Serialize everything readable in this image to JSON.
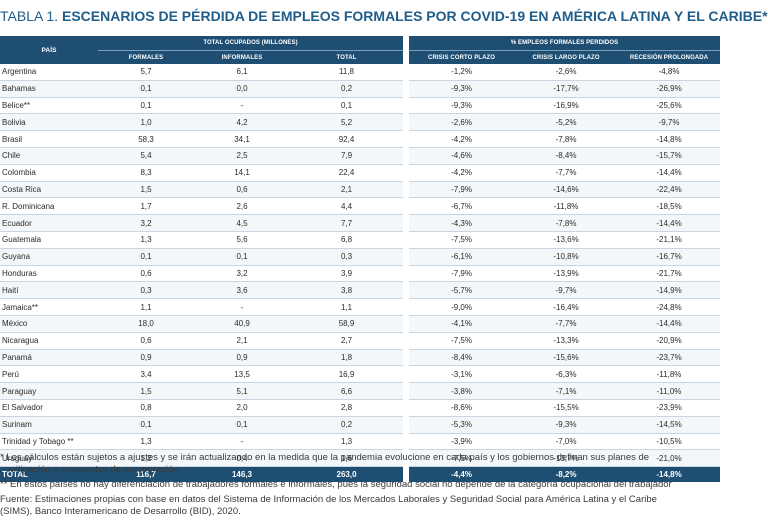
{
  "title": {
    "lead": "TABLA 1.",
    "rest": "ESCENARIOS DE PÉRDIDA DE EMPLEOS FORMALES POR COVID-19 EN AMÉRICA LATINA Y EL CARIBE*"
  },
  "table": {
    "header": {
      "pais": "PAÍS",
      "group_ocupados": "TOTAL OCUPADOS (MILLONES)",
      "group_perdidos": "% EMPLEOS FORMALES PERDIDOS",
      "formales": "FORMALES",
      "informales": "INFORMALES",
      "total": "TOTAL",
      "corto": "CRISIS CORTO PLAZO",
      "largo": "CRISIS LARGO PLAZO",
      "prolongada": "RECESIÓN PROLONGADA"
    },
    "rows": [
      {
        "pais": "Argentina",
        "formales": "5,7",
        "informales": "6,1",
        "total": "11,8",
        "corto": "-1,2%",
        "largo": "-2,6%",
        "prolongada": "-4,8%"
      },
      {
        "pais": "Bahamas",
        "formales": "0,1",
        "informales": "0,0",
        "total": "0,2",
        "corto": "-9,3%",
        "largo": "-17,7%",
        "prolongada": "-26,9%"
      },
      {
        "pais": "Belice**",
        "formales": "0,1",
        "informales": "-",
        "total": "0,1",
        "corto": "-9,3%",
        "largo": "-16,9%",
        "prolongada": "-25,6%"
      },
      {
        "pais": "Bolivia",
        "formales": "1,0",
        "informales": "4,2",
        "total": "5,2",
        "corto": "-2,6%",
        "largo": "-5,2%",
        "prolongada": "-9,7%"
      },
      {
        "pais": "Brasil",
        "formales": "58,3",
        "informales": "34,1",
        "total": "92,4",
        "corto": "-4,2%",
        "largo": "-7,8%",
        "prolongada": "-14,8%"
      },
      {
        "pais": "Chile",
        "formales": "5,4",
        "informales": "2,5",
        "total": "7,9",
        "corto": "-4,6%",
        "largo": "-8,4%",
        "prolongada": "-15,7%"
      },
      {
        "pais": "Colombia",
        "formales": "8,3",
        "informales": "14,1",
        "total": "22,4",
        "corto": "-4,2%",
        "largo": "-7,7%",
        "prolongada": "-14,4%"
      },
      {
        "pais": "Costa Rica",
        "formales": "1,5",
        "informales": "0,6",
        "total": "2,1",
        "corto": "-7,9%",
        "largo": "-14,6%",
        "prolongada": "-22,4%"
      },
      {
        "pais": "R. Dominicana",
        "formales": "1,7",
        "informales": "2,6",
        "total": "4,4",
        "corto": "-6,7%",
        "largo": "-11,8%",
        "prolongada": "-18,5%"
      },
      {
        "pais": "Ecuador",
        "formales": "3,2",
        "informales": "4,5",
        "total": "7,7",
        "corto": "-4,3%",
        "largo": "-7,8%",
        "prolongada": "-14,4%"
      },
      {
        "pais": "Guatemala",
        "formales": "1,3",
        "informales": "5,6",
        "total": "6,8",
        "corto": "-7,5%",
        "largo": "-13,6%",
        "prolongada": "-21,1%"
      },
      {
        "pais": "Guyana",
        "formales": "0,1",
        "informales": "0,1",
        "total": "0,3",
        "corto": "-6,1%",
        "largo": "-10,8%",
        "prolongada": "-16,7%"
      },
      {
        "pais": "Honduras",
        "formales": "0,6",
        "informales": "3,2",
        "total": "3,9",
        "corto": "-7,9%",
        "largo": "-13,9%",
        "prolongada": "-21,7%"
      },
      {
        "pais": "Haití",
        "formales": "0,3",
        "informales": "3,6",
        "total": "3,8",
        "corto": "-5,7%",
        "largo": "-9,7%",
        "prolongada": "-14,9%"
      },
      {
        "pais": "Jamaica**",
        "formales": "1,1",
        "informales": "-",
        "total": "1,1",
        "corto": "-9,0%",
        "largo": "-16,4%",
        "prolongada": "-24,8%"
      },
      {
        "pais": "México",
        "formales": "18,0",
        "informales": "40,9",
        "total": "58,9",
        "corto": "-4,1%",
        "largo": "-7,7%",
        "prolongada": "-14,4%"
      },
      {
        "pais": "Nicaragua",
        "formales": "0,6",
        "informales": "2,1",
        "total": "2,7",
        "corto": "-7,5%",
        "largo": "-13,3%",
        "prolongada": "-20,9%"
      },
      {
        "pais": "Panamá",
        "formales": "0,9",
        "informales": "0,9",
        "total": "1,8",
        "corto": "-8,4%",
        "largo": "-15,6%",
        "prolongada": "-23,7%"
      },
      {
        "pais": "Perú",
        "formales": "3,4",
        "informales": "13,5",
        "total": "16,9",
        "corto": "-3,1%",
        "largo": "-6,3%",
        "prolongada": "-11,8%"
      },
      {
        "pais": "Paraguay",
        "formales": "1,5",
        "informales": "5,1",
        "total": "6,6",
        "corto": "-3,8%",
        "largo": "-7,1%",
        "prolongada": "-11,0%"
      },
      {
        "pais": "El Salvador",
        "formales": "0,8",
        "informales": "2,0",
        "total": "2,8",
        "corto": "-8,6%",
        "largo": "-15,5%",
        "prolongada": "-23,9%"
      },
      {
        "pais": "Surinam",
        "formales": "0,1",
        "informales": "0,1",
        "total": "0,2",
        "corto": "-5,3%",
        "largo": "-9,3%",
        "prolongada": "-14,5%"
      },
      {
        "pais": "Trinidad y Tobago **",
        "formales": "1,3",
        "informales": "-",
        "total": "1,3",
        "corto": "-3,9%",
        "largo": "-7,0%",
        "prolongada": "-10,5%"
      },
      {
        "pais": "Uruguay",
        "formales": "1,2",
        "informales": "0,4",
        "total": "1,6",
        "corto": "-7,5%",
        "largo": "-13,7%",
        "prolongada": "-21,0%"
      }
    ],
    "total": {
      "pais": "TOTAL",
      "formales": "116,7",
      "informales": "146,3",
      "total": "263,0",
      "corto": "-4,4%",
      "largo": "-8,2%",
      "prolongada": "-14,8%"
    }
  },
  "notes": {
    "n1a": "* Los cálculos están sujetos a ajustes y se irán actualizando en la medida que la pandemia evolucione en cada país y los gobiernos definan sus planes de",
    "n1b": "mitigación y propuestas de recuperación.",
    "n2": "** En estos países no hay diferenciación de trabajadores formales e informales, pues la seguridad social no depende de la categoría ocupacional del trabajador",
    "n3a": "Fuente: Estimaciones propias con base en datos del Sistema de Información de los Mercados Laborales y Seguridad Social para América Latina y el Caribe",
    "n3b": "(SIMS), Banco Interamericano de Desarrollo (BID), 2020."
  }
}
